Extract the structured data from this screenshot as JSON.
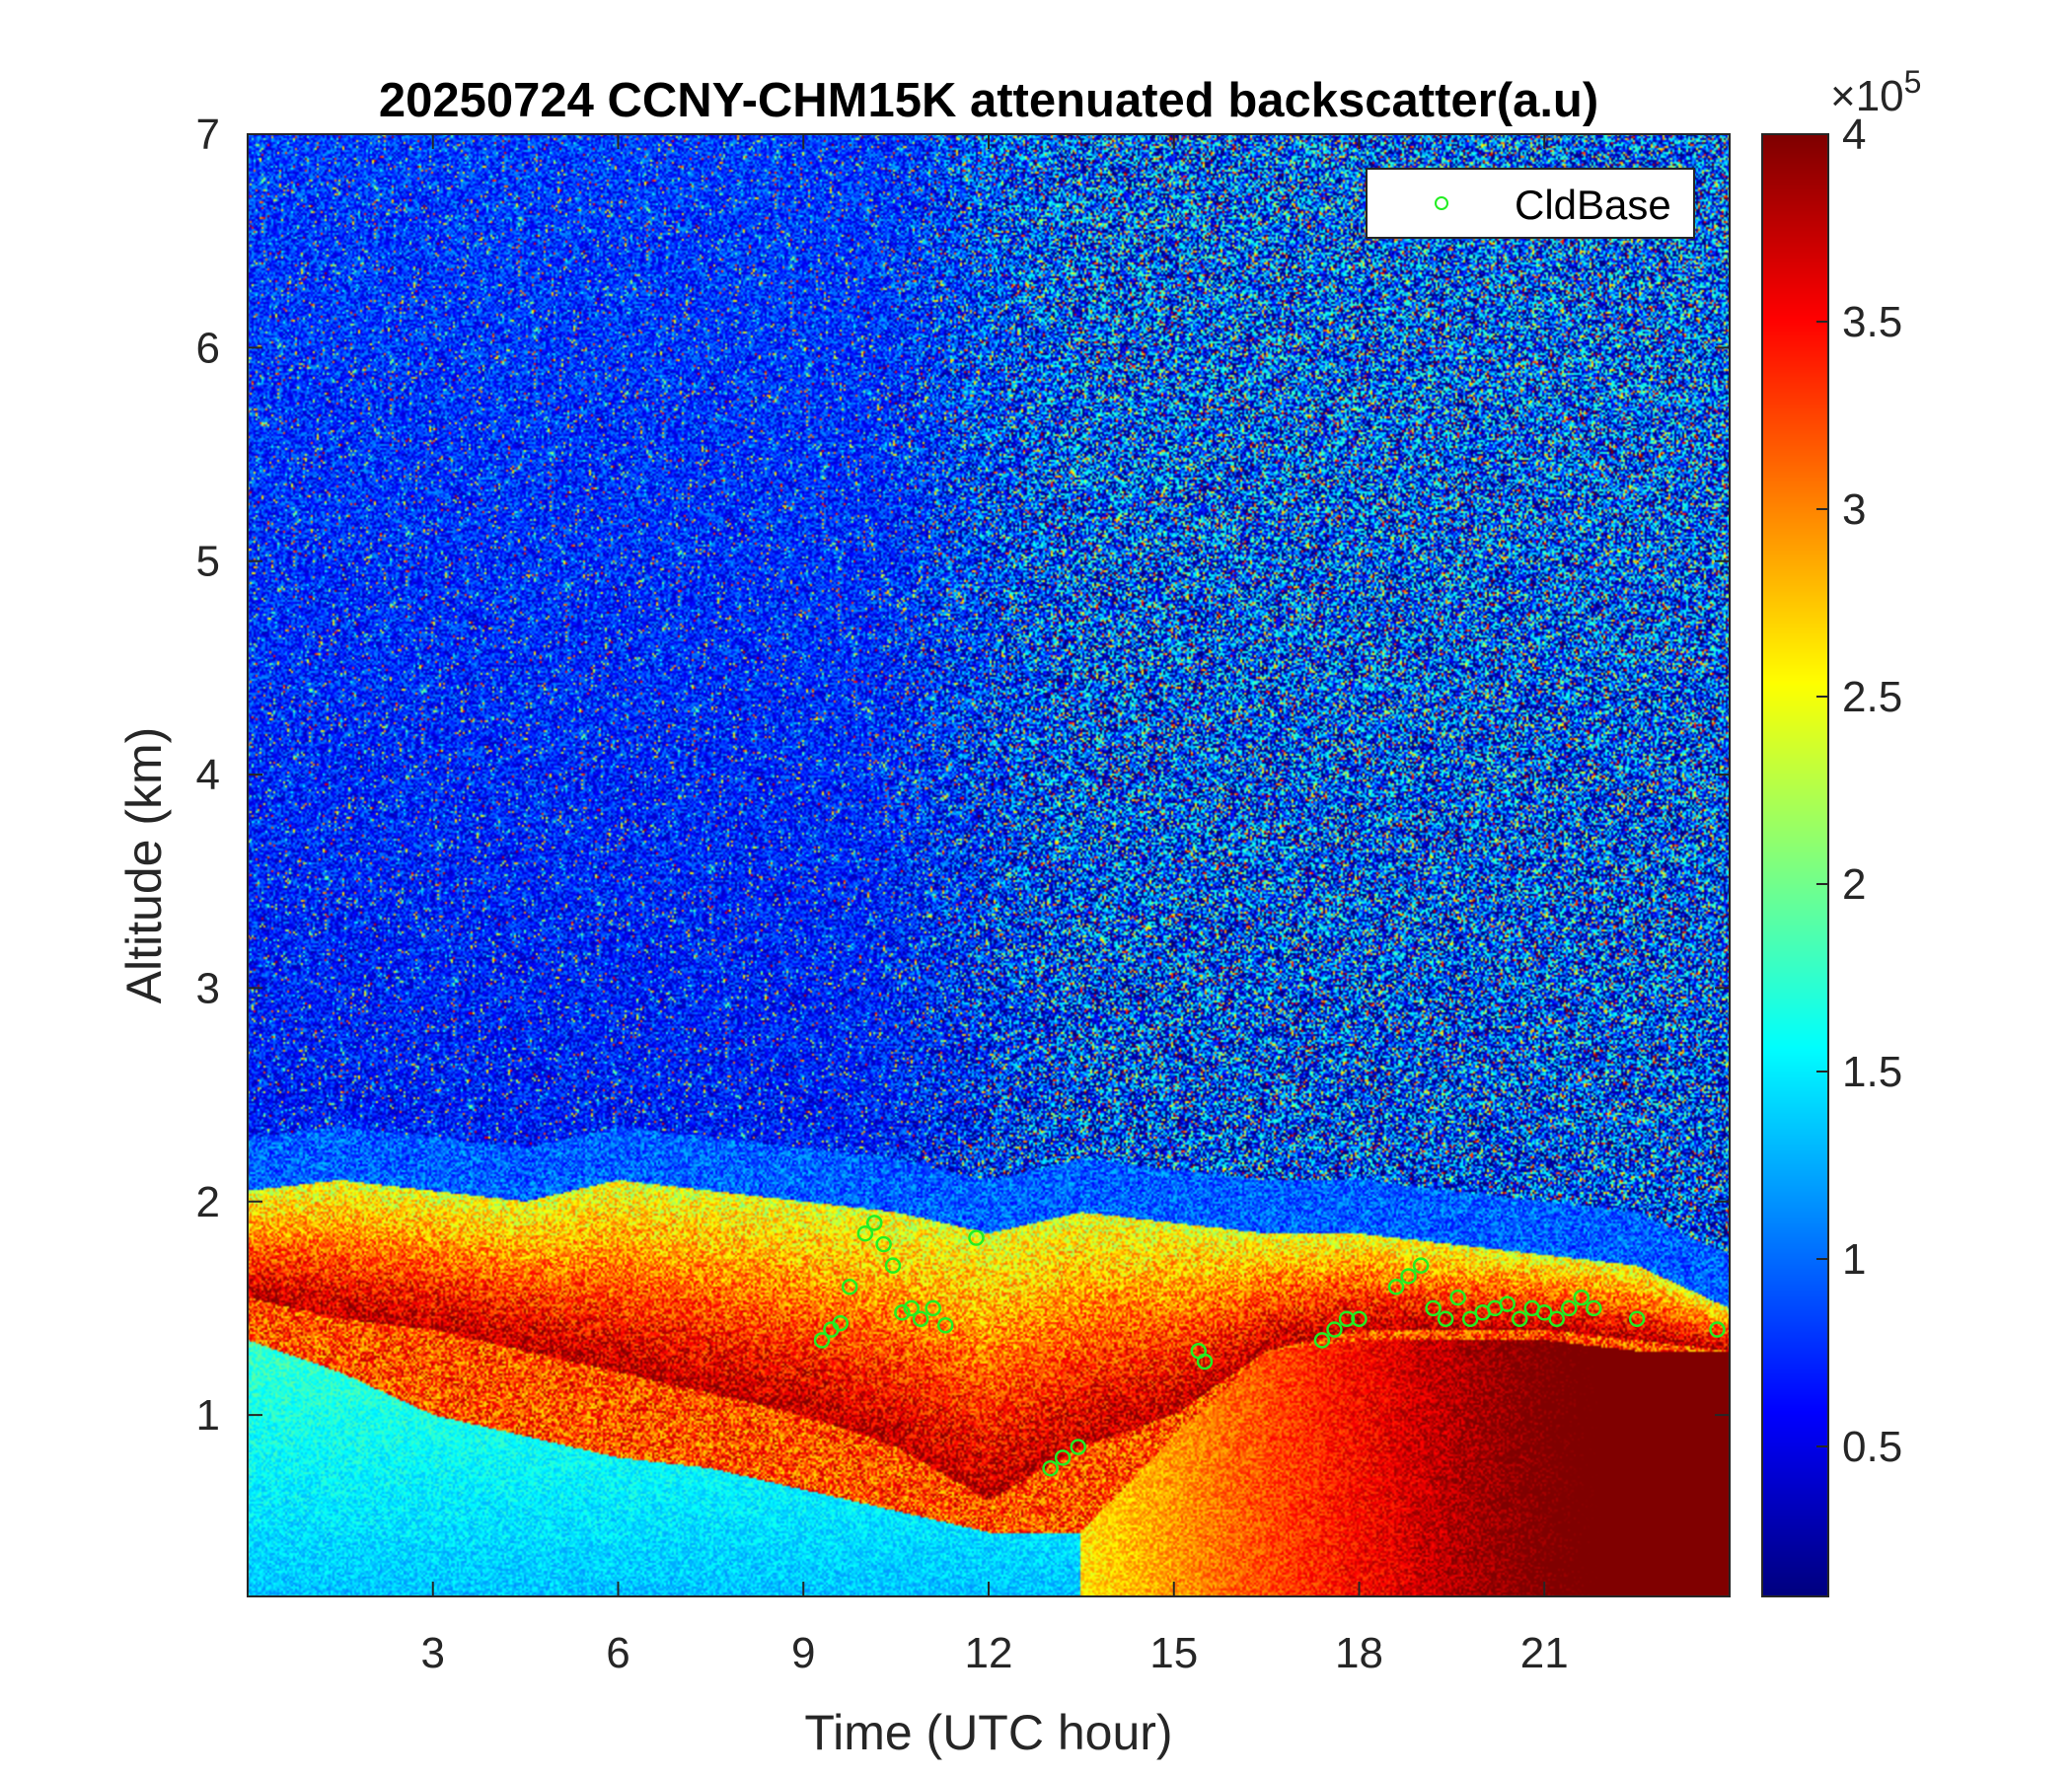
{
  "chart_data": {
    "type": "heatmap",
    "title": "20250724 CCNY-CHM15K attenuated backscatter(a.u)",
    "xlabel": "Time (UTC hour)",
    "ylabel": "Altitude (km)",
    "xlim": [
      0,
      24
    ],
    "ylim": [
      0.15,
      7
    ],
    "xticks": [
      3,
      6,
      9,
      12,
      15,
      18,
      21
    ],
    "xtick_labels": [
      "3",
      "6",
      "9",
      "12",
      "15",
      "18",
      "21"
    ],
    "yticks": [
      1,
      2,
      3,
      4,
      5,
      6,
      7
    ],
    "ytick_labels": [
      "1",
      "2",
      "3",
      "4",
      "5",
      "6",
      "7"
    ],
    "colormap": "jet",
    "colorbar": {
      "clim": [
        0.1,
        4
      ],
      "ticks": [
        0.5,
        1,
        1.5,
        2,
        2.5,
        3,
        3.5,
        4
      ],
      "tick_labels": [
        "0.5",
        "1",
        "1.5",
        "2",
        "2.5",
        "3",
        "3.5",
        "4"
      ],
      "multiplier_base": "×10",
      "multiplier_exp": "5"
    },
    "legend": {
      "position": "top-right",
      "entries": [
        "CldBase"
      ]
    },
    "colors": {
      "cldbase_marker": "#22ee22",
      "axes": "#262626"
    },
    "cloud_base": {
      "name": "CldBase",
      "x": [
        9.3,
        9.45,
        9.6,
        9.75,
        10.0,
        10.15,
        10.3,
        10.45,
        10.6,
        10.75,
        10.9,
        11.1,
        11.3,
        11.8,
        13.0,
        13.2,
        13.45,
        15.4,
        15.5,
        17.4,
        17.6,
        17.8,
        18.0,
        18.6,
        18.8,
        19.0,
        19.2,
        19.4,
        19.6,
        19.8,
        20.0,
        20.2,
        20.4,
        20.6,
        20.8,
        21.0,
        21.2,
        21.4,
        21.6,
        21.8,
        22.5,
        23.8
      ],
      "y": [
        1.35,
        1.4,
        1.43,
        1.6,
        1.85,
        1.9,
        1.8,
        1.7,
        1.48,
        1.5,
        1.45,
        1.5,
        1.42,
        1.83,
        0.75,
        0.8,
        0.85,
        1.3,
        1.25,
        1.35,
        1.4,
        1.45,
        1.45,
        1.6,
        1.65,
        1.7,
        1.5,
        1.45,
        1.55,
        1.45,
        1.48,
        1.5,
        1.52,
        1.45,
        1.5,
        1.48,
        1.45,
        1.5,
        1.55,
        1.5,
        1.45,
        1.4
      ]
    },
    "mixing_layer_top": {
      "x": [
        0,
        1.5,
        3,
        4.5,
        6,
        7.5,
        9,
        10.5,
        12,
        13.5,
        15,
        16.5,
        18,
        19.5,
        21,
        22.5,
        24
      ],
      "y": [
        2.05,
        2.1,
        2.05,
        2.0,
        2.1,
        2.05,
        2.0,
        1.95,
        1.85,
        1.95,
        1.9,
        1.85,
        1.85,
        1.8,
        1.75,
        1.7,
        1.5
      ]
    },
    "residual_layer_bottom": {
      "x": [
        0,
        1.5,
        3,
        4.5,
        6,
        7.5,
        9,
        10.5,
        12,
        13.5,
        15,
        16.5,
        18,
        19.5,
        21,
        22.5,
        24
      ],
      "y": [
        1.55,
        1.45,
        1.4,
        1.3,
        1.2,
        1.1,
        1.0,
        0.85,
        0.6,
        0.85,
        1.0,
        1.3,
        1.4,
        1.4,
        1.4,
        1.35,
        1.3
      ]
    },
    "aerosol_bottom": {
      "x": [
        0,
        1.5,
        3,
        4.5,
        6,
        7.5,
        9,
        10.5,
        12,
        13.5,
        15,
        16.5,
        18,
        19.5,
        21,
        22.5,
        24
      ],
      "y": [
        1.35,
        1.2,
        1.0,
        0.9,
        0.8,
        0.75,
        0.65,
        0.55,
        0.45,
        0.45,
        0.9,
        1.3,
        1.35,
        1.35,
        1.35,
        1.3,
        1.3
      ]
    }
  }
}
